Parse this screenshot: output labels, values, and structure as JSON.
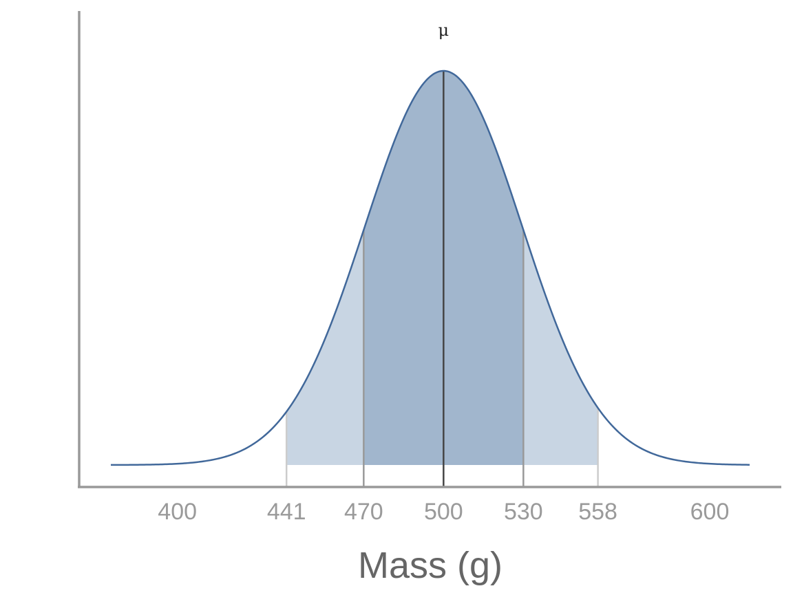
{
  "chart_data": {
    "type": "area",
    "title": "",
    "xlabel": "Mass (g)",
    "ylabel": "",
    "distribution": {
      "family": "normal",
      "mean": 500,
      "sd": 29.5
    },
    "xlim": [
      375,
      615
    ],
    "x_ticks": [
      400,
      441,
      470,
      500,
      530,
      558,
      600
    ],
    "shaded_regions": [
      {
        "from": 441,
        "to": 558,
        "color": "#c8d5e3"
      },
      {
        "from": 470,
        "to": 530,
        "color": "#a1b6cd"
      }
    ],
    "reference_lines": [
      {
        "x": 441,
        "color": "#cccccc"
      },
      {
        "x": 470,
        "color": "#999999"
      },
      {
        "x": 500,
        "color": "#444444",
        "label": "μ"
      },
      {
        "x": 530,
        "color": "#999999"
      },
      {
        "x": 558,
        "color": "#cccccc"
      }
    ],
    "curve_color": "#41689a",
    "axis_color": "#999999",
    "grid": false,
    "legend": "none"
  }
}
